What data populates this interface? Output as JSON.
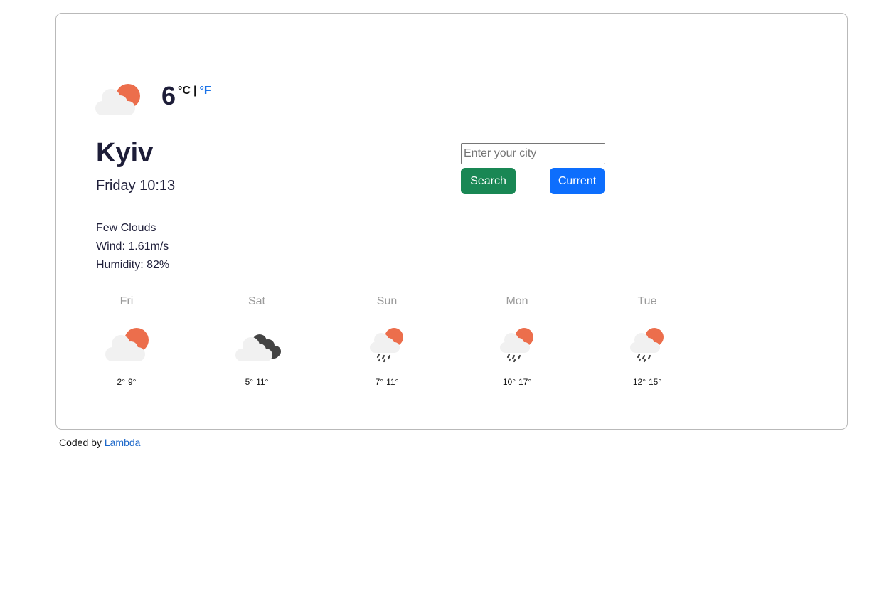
{
  "current": {
    "icon": "few-clouds-day-icon",
    "temperature": "6",
    "unit_c": "°C",
    "unit_separator": "|",
    "unit_f": "°F",
    "city": "Kyiv",
    "datetime": "Friday 10:13",
    "description": "Few Clouds",
    "wind": "Wind: 1.61m/s",
    "humidity": "Humidity: 82%"
  },
  "search": {
    "placeholder": "Enter your city",
    "value": "",
    "search_label": "Search",
    "current_label": "Current"
  },
  "forecast": [
    {
      "day": "Fri",
      "icon": "few-clouds-day-icon",
      "min": "2°",
      "max": "9°"
    },
    {
      "day": "Sat",
      "icon": "broken-clouds-icon",
      "min": "5°",
      "max": "11°"
    },
    {
      "day": "Sun",
      "icon": "rain-day-icon",
      "min": "7°",
      "max": "11°"
    },
    {
      "day": "Mon",
      "icon": "rain-day-icon",
      "min": "10°",
      "max": "17°"
    },
    {
      "day": "Tue",
      "icon": "rain-day-icon",
      "min": "12°",
      "max": "15°"
    }
  ],
  "footer": {
    "text": "Coded by",
    "link_text": "Lambda"
  },
  "colors": {
    "search_button": "#198754",
    "current_button": "#0d6efd",
    "sun": "#ec6e4c",
    "cloud": "#f1f1f1",
    "dark_cloud": "#444444"
  }
}
